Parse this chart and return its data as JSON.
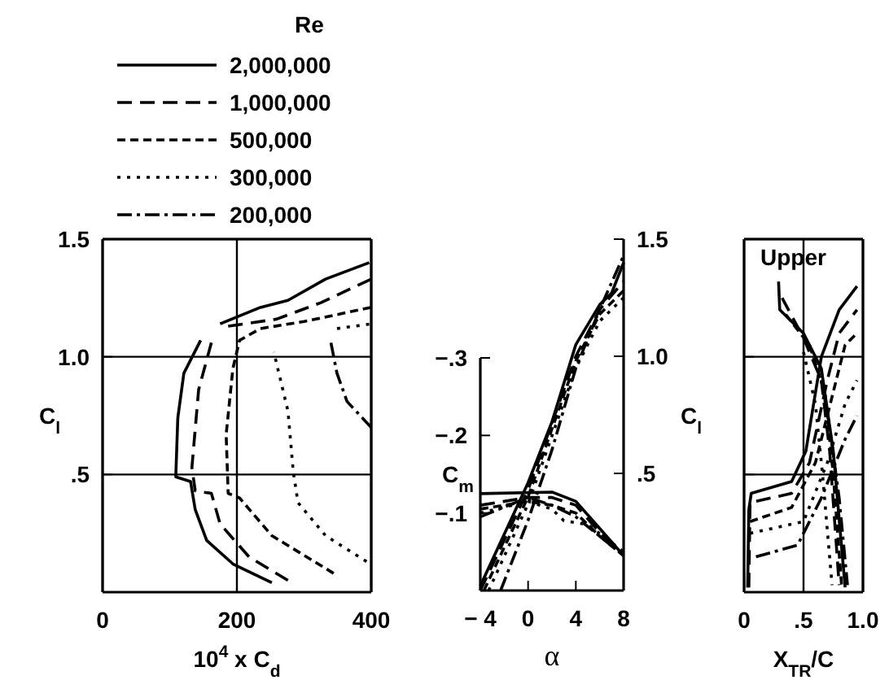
{
  "chart_data": [
    {
      "type": "line",
      "xlabel": "10$^{4}$ x C$_{d}$",
      "ylabel": "C$_{l}$",
      "legend_title": "Re",
      "legend": "top",
      "grid": true,
      "xlim": [
        0,
        400
      ],
      "xticks": [
        0,
        200,
        400
      ],
      "ylim": [
        0,
        1.5
      ],
      "yticks": [
        {
          "value": 0.5,
          "label": ".5"
        },
        {
          "value": 1,
          "label": "1.0"
        },
        {
          "value": 1.5,
          "label": "1.5"
        }
      ],
      "series": [
        {
          "name": "2,000,000",
          "color": "#000000",
          "line_style": "solid",
          "x": [
            252,
            194,
            155,
            138,
            131,
            109,
            112,
            121,
            146,
            null,
            175,
            235,
            276,
            332,
            397
          ],
          "values": [
            0.04,
            0.12,
            0.22,
            0.35,
            0.47,
            0.49,
            0.74,
            0.93,
            1.07,
            null,
            1.14,
            1.21,
            1.24,
            1.33,
            1.4
          ]
        },
        {
          "name": "1,000,000",
          "color": "#000000",
          "line_style": "longdash",
          "x": [
            276,
            218,
            175,
            162,
            138,
            133,
            143,
            162,
            null,
            187,
            259,
            325,
            400
          ],
          "values": [
            0.05,
            0.15,
            0.29,
            0.42,
            0.43,
            0.53,
            0.86,
            1.06,
            null,
            1.13,
            1.16,
            1.23,
            1.33
          ]
        },
        {
          "name": "500,000",
          "color": "#000000",
          "line_style": "dashed",
          "x": [
            344,
            252,
            204,
            187,
            184,
            194,
            204,
            235,
            300,
            400
          ],
          "values": [
            0.08,
            0.24,
            0.4,
            0.42,
            0.67,
            0.95,
            1.07,
            1.12,
            1.15,
            1.21
          ]
        },
        {
          "name": "300,000",
          "color": "#000000",
          "line_style": "dotted",
          "x": [
            393,
            332,
            291,
            284,
            276,
            255,
            null,
            349,
            400
          ],
          "values": [
            0.13,
            0.24,
            0.38,
            0.51,
            0.77,
            1.02,
            null,
            1.12,
            1.14
          ]
        },
        {
          "name": "200,000",
          "color": "#000000",
          "line_style": "dashdot",
          "x": [
            340,
            349,
            364,
            400
          ],
          "values": [
            1.06,
            0.93,
            0.81,
            0.7
          ]
        }
      ]
    },
    {
      "type": "line",
      "xlabel": "α",
      "ylabel": "C$_{m}$",
      "xlim": [
        -4,
        8
      ],
      "xticks": [
        {
          "value": -4,
          "label": "− 4"
        },
        0,
        4,
        8
      ],
      "ylim": [
        0,
        -0.3
      ],
      "yticks": [
        {
          "value": -0.1,
          "label": "−.1"
        },
        {
          "value": -0.2,
          "label": "−.2"
        },
        {
          "value": -0.3,
          "label": "−.3"
        }
      ],
      "y2lim": [
        0,
        1.5
      ],
      "y2ticks": [
        {
          "value": 0.5,
          "label": ".5"
        },
        {
          "value": 1,
          "label": "1.0"
        },
        {
          "value": 1.5,
          "label": "1.5"
        }
      ],
      "series": [
        {
          "color": "#000000",
          "line_style": "solid",
          "axis": "y2",
          "x": [
            -4,
            0,
            2,
            4,
            6,
            7,
            8
          ],
          "values": [
            0.02,
            0.46,
            0.72,
            1.05,
            1.22,
            1.27,
            1.4
          ]
        },
        {
          "color": "#000000",
          "line_style": "longdash",
          "axis": "y2",
          "x": [
            -4,
            0,
            4,
            6,
            8
          ],
          "values": [
            0,
            0.43,
            1,
            1.2,
            1.32
          ]
        },
        {
          "color": "#000000",
          "line_style": "dashed",
          "axis": "y2",
          "x": [
            -3.7,
            0,
            4,
            6,
            8
          ],
          "values": [
            0,
            0.4,
            0.98,
            1.18,
            1.28
          ]
        },
        {
          "color": "#000000",
          "line_style": "dotted",
          "axis": "y2",
          "x": [
            -3.3,
            0,
            4,
            6,
            8
          ],
          "values": [
            0,
            0.37,
            0.95,
            1.15,
            1.25
          ]
        },
        {
          "color": "#000000",
          "line_style": "dashdot",
          "axis": "y2",
          "x": [
            -2.3,
            0,
            2,
            4,
            6,
            8
          ],
          "values": [
            0,
            0.3,
            0.6,
            0.95,
            1.2,
            1.43
          ]
        },
        {
          "color": "#000000",
          "line_style": "solid",
          "axis": "y",
          "x": [
            -4,
            2,
            4,
            6,
            8
          ],
          "values": [
            -0.125,
            -0.127,
            -0.115,
            -0.08,
            -0.045
          ]
        },
        {
          "color": "#000000",
          "line_style": "longdash",
          "axis": "y",
          "x": [
            -4,
            0,
            2,
            4,
            6,
            8
          ],
          "values": [
            -0.11,
            -0.12,
            -0.12,
            -0.11,
            -0.075,
            -0.045
          ]
        },
        {
          "color": "#000000",
          "line_style": "dashed",
          "axis": "y",
          "x": [
            -4,
            0,
            2,
            4,
            6,
            8
          ],
          "values": [
            -0.105,
            -0.115,
            -0.11,
            -0.1,
            -0.07,
            -0.045
          ]
        },
        {
          "color": "#000000",
          "line_style": "dotted",
          "axis": "y",
          "x": [
            -4,
            0,
            2,
            3,
            5,
            8
          ],
          "values": [
            -0.1,
            -0.115,
            -0.105,
            -0.09,
            -0.085,
            -0.05
          ]
        },
        {
          "color": "#000000",
          "line_style": "dashdot",
          "axis": "y",
          "x": [
            -4,
            0,
            2,
            4,
            6,
            8
          ],
          "values": [
            -0.095,
            -0.12,
            -0.11,
            -0.095,
            -0.07,
            -0.045
          ]
        }
      ]
    },
    {
      "type": "line",
      "xlabel": "X$_{TR}$/C",
      "ylabel": "C$_{l}$",
      "annotations": [
        "Upper"
      ],
      "grid": true,
      "tick_labels": "x",
      "xlim": [
        0,
        1
      ],
      "xticks": [
        0,
        {
          "value": 0.5,
          "label": ".5"
        },
        {
          "value": 1,
          "label": "1.0"
        }
      ],
      "ylim": [
        0,
        1.5
      ],
      "yticks": [
        0.5,
        1,
        1.5
      ],
      "series": [
        {
          "color": "#000000",
          "line_style": "solid",
          "x": [
            0.29,
            0.3,
            0.5,
            0.65,
            0.75,
            0.85
          ],
          "values": [
            1.32,
            1.2,
            1.1,
            0.95,
            0.6,
            0.02
          ]
        },
        {
          "color": "#000000",
          "line_style": "longdash",
          "x": [
            0.32,
            0.5,
            0.65,
            0.72,
            0.8
          ],
          "values": [
            1.25,
            1.08,
            0.9,
            0.6,
            0.03
          ]
        },
        {
          "color": "#000000",
          "line_style": "dashed",
          "x": [
            0.35,
            0.55,
            0.68,
            0.75,
            0.82
          ],
          "values": [
            1.18,
            1.05,
            0.85,
            0.5,
            0.03
          ]
        },
        {
          "color": "#000000",
          "line_style": "dotted",
          "x": [
            0.5,
            0.6,
            0.66,
            0.74
          ],
          "values": [
            1.02,
            0.8,
            0.5,
            0.03
          ]
        },
        {
          "color": "#000000",
          "line_style": "dashdot",
          "x": [
            0.65,
            0.72,
            0.8,
            0.87
          ],
          "values": [
            0.9,
            0.7,
            0.4,
            0.03
          ]
        },
        {
          "color": "#000000",
          "line_style": "solid",
          "x": [
            0.03,
            0.04,
            0.06,
            0.4,
            0.52,
            0.65,
            0.8,
            0.95
          ],
          "values": [
            0.02,
            0.35,
            0.42,
            0.47,
            0.6,
            1,
            1.2,
            1.3
          ]
        },
        {
          "color": "#000000",
          "line_style": "longdash",
          "x": [
            0.04,
            0.05,
            0.4,
            0.55,
            0.7,
            0.8,
            0.95
          ],
          "values": [
            0.02,
            0.38,
            0.42,
            0.55,
            0.9,
            1.1,
            1.2
          ]
        },
        {
          "color": "#000000",
          "line_style": "dashed",
          "x": [
            0.05,
            0.4,
            0.6,
            0.75,
            0.85,
            0.95
          ],
          "values": [
            0.3,
            0.36,
            0.55,
            0.85,
            1.05,
            1.1
          ]
        },
        {
          "color": "#000000",
          "line_style": "dotted",
          "x": [
            0.05,
            0.5,
            0.7,
            0.85,
            0.95
          ],
          "values": [
            0.25,
            0.3,
            0.55,
            0.8,
            0.9
          ]
        },
        {
          "color": "#000000",
          "line_style": "dashdot",
          "x": [
            0.1,
            0.45,
            0.65,
            0.85,
            0.95
          ],
          "values": [
            0.15,
            0.2,
            0.4,
            0.65,
            0.75
          ]
        }
      ]
    }
  ]
}
